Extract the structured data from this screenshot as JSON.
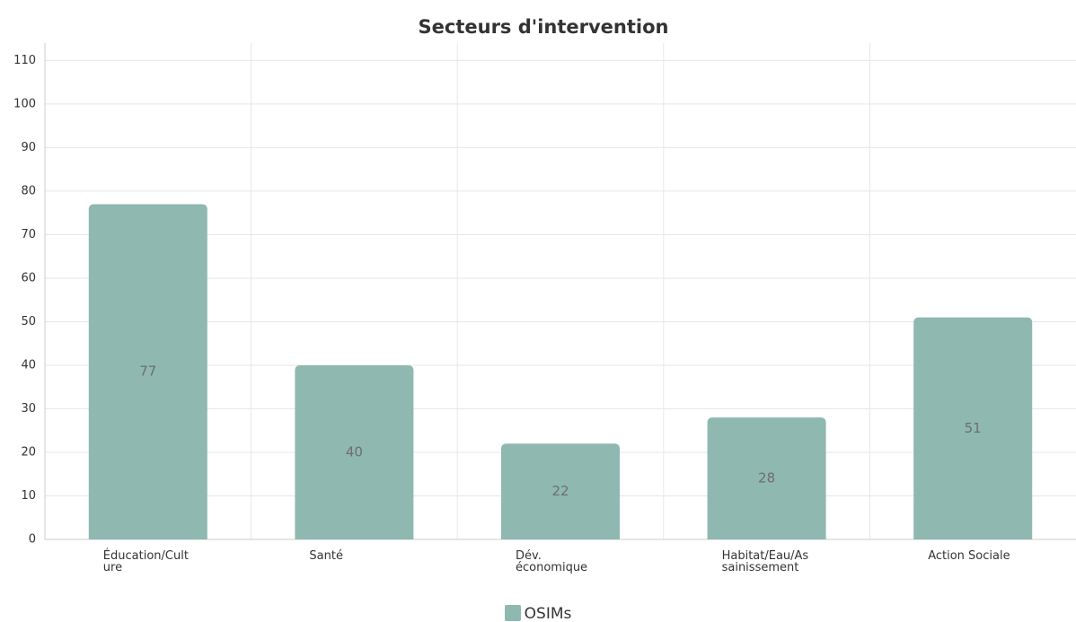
{
  "chart_data": {
    "type": "bar",
    "title": "Secteurs d'intervention",
    "categories": [
      "Éducation/Culture",
      "Santé",
      "Dév. économique",
      "Habitat/Eau/Assainissement",
      "Action Sociale"
    ],
    "series": [
      {
        "name": "OSIMs",
        "color": "#8fb8b1",
        "values": [
          77,
          40,
          22,
          28,
          51
        ]
      }
    ],
    "ylim": [
      0,
      114
    ],
    "yticks": [
      0,
      10,
      20,
      30,
      40,
      50,
      60,
      70,
      80,
      90,
      100,
      110
    ],
    "grid": true,
    "legend": "bottom"
  }
}
